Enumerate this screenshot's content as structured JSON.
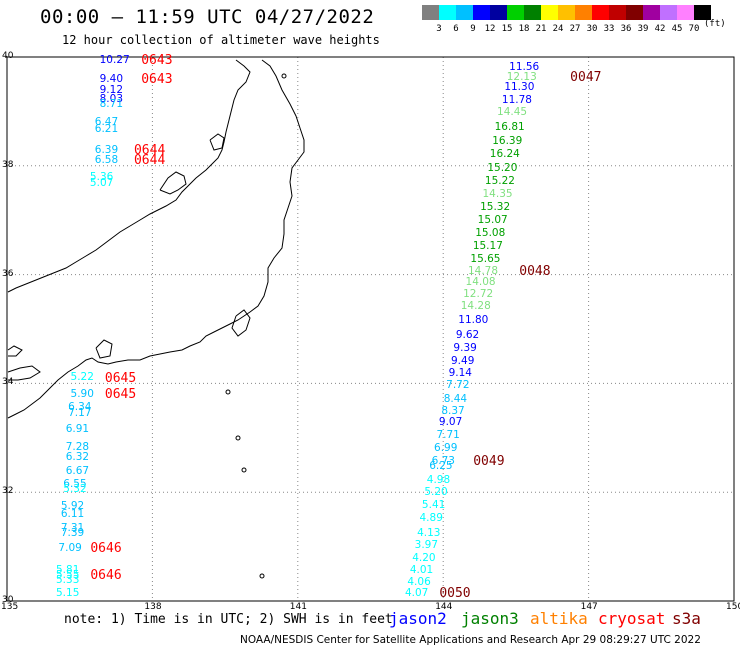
{
  "title": "00:00 — 11:59 UTC 04/27/2022",
  "subtitle": "12 hour collection of altimeter wave heights",
  "colorbar": {
    "colors": [
      "#808080",
      "#00ffff",
      "#00c0ff",
      "#0000ff",
      "#0000a0",
      "#00d000",
      "#008000",
      "#ffff00",
      "#ffc000",
      "#ff8000",
      "#ff0000",
      "#c00000",
      "#800000",
      "#a000a0",
      "#c070ff",
      "#ff80ff",
      "#000000"
    ],
    "labels": [
      "3",
      "6",
      "9",
      "12",
      "15",
      "18",
      "21",
      "24",
      "27",
      "30",
      "33",
      "36",
      "39",
      "42",
      "45",
      "70"
    ],
    "unit": "(ft)"
  },
  "axes": {
    "lon_range": [
      135,
      150
    ],
    "lat_range": [
      30,
      40
    ],
    "lon_ticks": [
      "135",
      "138",
      "141",
      "144",
      "147",
      "150"
    ],
    "lat_ticks": [
      "40",
      "38",
      "36",
      "34",
      "32",
      "30"
    ]
  },
  "note": "note:  1) Time is in UTC;  2) SWH is in feet",
  "satellites": [
    {
      "name": "jason2",
      "color": "#0000ff"
    },
    {
      "name": "jason3",
      "color": "#008000"
    },
    {
      "name": "altika",
      "color": "#ff8000"
    },
    {
      "name": "cryosat",
      "color": "#ff0000"
    },
    {
      "name": "s3a",
      "color": "#800000"
    }
  ],
  "credit": "NOAA/NESDIS Center for Satellite Applications and Research   Apr 29 08:29:27 UTC 2022",
  "tracks": [
    {
      "id": "west",
      "readings": [
        {
          "v": "10.27",
          "c": "#0000ff",
          "lat": 39.93,
          "lon": 137.2
        },
        {
          "v": "9.40",
          "c": "#0000ff",
          "lat": 39.58,
          "lon": 137.2
        },
        {
          "v": "9.12",
          "c": "#0000ff",
          "lat": 39.38,
          "lon": 137.2
        },
        {
          "v": "8.03",
          "c": "#0000ff",
          "lat": 39.21,
          "lon": 137.2
        },
        {
          "v": "8.71",
          "c": "#00c0ff",
          "lat": 39.12,
          "lon": 137.2
        },
        {
          "v": "6.47",
          "c": "#00c0ff",
          "lat": 38.78,
          "lon": 137.1
        },
        {
          "v": "6.21",
          "c": "#00c0ff",
          "lat": 38.66,
          "lon": 137.1
        },
        {
          "v": "6.39",
          "c": "#00c0ff",
          "lat": 38.27,
          "lon": 137.1
        },
        {
          "v": "6.58",
          "c": "#00c0ff",
          "lat": 38.09,
          "lon": 137.1
        },
        {
          "v": "5.36",
          "c": "#00ffff",
          "lat": 37.77,
          "lon": 137.0
        },
        {
          "v": "5.07",
          "c": "#00ffff",
          "lat": 37.66,
          "lon": 137.0
        },
        {
          "v": "5.22",
          "c": "#00ffff",
          "lat": 34.1,
          "lon": 136.6
        },
        {
          "v": "5.90",
          "c": "#00c0ff",
          "lat": 33.79,
          "lon": 136.6
        },
        {
          "v": "6.34",
          "c": "#00c0ff",
          "lat": 33.54,
          "lon": 136.55
        },
        {
          "v": "7.17",
          "c": "#00c0ff",
          "lat": 33.43,
          "lon": 136.55
        },
        {
          "v": "6.91",
          "c": "#00c0ff",
          "lat": 33.14,
          "lon": 136.5
        },
        {
          "v": "7.28",
          "c": "#00c0ff",
          "lat": 32.81,
          "lon": 136.5
        },
        {
          "v": "6.32",
          "c": "#00c0ff",
          "lat": 32.63,
          "lon": 136.5
        },
        {
          "v": "6.67",
          "c": "#00c0ff",
          "lat": 32.38,
          "lon": 136.5
        },
        {
          "v": "6.55",
          "c": "#00c0ff",
          "lat": 32.13,
          "lon": 136.45
        },
        {
          "v": "5.32",
          "c": "#00ffff",
          "lat": 32.04,
          "lon": 136.45
        },
        {
          "v": "5.92",
          "c": "#00c0ff",
          "lat": 31.72,
          "lon": 136.4
        },
        {
          "v": "6.11",
          "c": "#00c0ff",
          "lat": 31.58,
          "lon": 136.4
        },
        {
          "v": "7.31",
          "c": "#00c0ff",
          "lat": 31.32,
          "lon": 136.4
        },
        {
          "v": "7.39",
          "c": "#00c0ff",
          "lat": 31.23,
          "lon": 136.4
        },
        {
          "v": "7.09",
          "c": "#00c0ff",
          "lat": 30.96,
          "lon": 136.35
        },
        {
          "v": "5.81",
          "c": "#00ffff",
          "lat": 30.56,
          "lon": 136.3
        },
        {
          "v": "5.55",
          "c": "#00ffff",
          "lat": 30.46,
          "lon": 136.3
        },
        {
          "v": "5.33",
          "c": "#00ffff",
          "lat": 30.37,
          "lon": 136.3
        },
        {
          "v": "5.15",
          "c": "#00ffff",
          "lat": 30.12,
          "lon": 136.3
        }
      ],
      "times": [
        {
          "t": "0643",
          "c": "#ff0000",
          "lat": 39.93,
          "lon": 138.1
        },
        {
          "t": "0643",
          "c": "#ff0000",
          "lat": 39.58,
          "lon": 138.1
        },
        {
          "t": "0644",
          "c": "#ff0000",
          "lat": 38.27,
          "lon": 137.95
        },
        {
          "t": "0644",
          "c": "#ff0000",
          "lat": 38.09,
          "lon": 137.95
        },
        {
          "t": "0645",
          "c": "#ff0000",
          "lat": 34.08,
          "lon": 137.35
        },
        {
          "t": "0645",
          "c": "#ff0000",
          "lat": 33.79,
          "lon": 137.35
        },
        {
          "t": "0646",
          "c": "#ff0000",
          "lat": 30.96,
          "lon": 137.05
        },
        {
          "t": "0646",
          "c": "#ff0000",
          "lat": 30.46,
          "lon": 137.05
        }
      ]
    },
    {
      "id": "east",
      "readings": [
        {
          "v": "11.56",
          "c": "#0000ff",
          "lat": 39.8,
          "lon": 145.65
        },
        {
          "v": "12.13",
          "c": "#80e080",
          "lat": 39.62,
          "lon": 145.6
        },
        {
          "v": "11.30",
          "c": "#0000ff",
          "lat": 39.43,
          "lon": 145.55
        },
        {
          "v": "11.78",
          "c": "#0000ff",
          "lat": 39.2,
          "lon": 145.5
        },
        {
          "v": "14.45",
          "c": "#80e080",
          "lat": 38.97,
          "lon": 145.4
        },
        {
          "v": "16.81",
          "c": "#00a000",
          "lat": 38.7,
          "lon": 145.35
        },
        {
          "v": "16.39",
          "c": "#00a000",
          "lat": 38.44,
          "lon": 145.3
        },
        {
          "v": "16.24",
          "c": "#00a000",
          "lat": 38.2,
          "lon": 145.25
        },
        {
          "v": "15.20",
          "c": "#00a000",
          "lat": 37.95,
          "lon": 145.2
        },
        {
          "v": "15.22",
          "c": "#00a000",
          "lat": 37.7,
          "lon": 145.15
        },
        {
          "v": "14.35",
          "c": "#80e080",
          "lat": 37.47,
          "lon": 145.1
        },
        {
          "v": "15.32",
          "c": "#00a000",
          "lat": 37.22,
          "lon": 145.05
        },
        {
          "v": "15.07",
          "c": "#00a000",
          "lat": 36.98,
          "lon": 145.0
        },
        {
          "v": "15.08",
          "c": "#00a000",
          "lat": 36.75,
          "lon": 144.95
        },
        {
          "v": "15.17",
          "c": "#00a000",
          "lat": 36.51,
          "lon": 144.9
        },
        {
          "v": "15.65",
          "c": "#00a000",
          "lat": 36.27,
          "lon": 144.85
        },
        {
          "v": "14.78",
          "c": "#80e080",
          "lat": 36.05,
          "lon": 144.8
        },
        {
          "v": "14.08",
          "c": "#80e080",
          "lat": 35.84,
          "lon": 144.75
        },
        {
          "v": "12.72",
          "c": "#80e080",
          "lat": 35.62,
          "lon": 144.7
        },
        {
          "v": "14.28",
          "c": "#80e080",
          "lat": 35.41,
          "lon": 144.65
        },
        {
          "v": "11.80",
          "c": "#0000ff",
          "lat": 35.14,
          "lon": 144.6
        },
        {
          "v": "9.62",
          "c": "#0000ff",
          "lat": 34.88,
          "lon": 144.55
        },
        {
          "v": "9.39",
          "c": "#0000ff",
          "lat": 34.64,
          "lon": 144.5
        },
        {
          "v": "9.49",
          "c": "#0000ff",
          "lat": 34.4,
          "lon": 144.45
        },
        {
          "v": "9.14",
          "c": "#0000ff",
          "lat": 34.18,
          "lon": 144.4
        },
        {
          "v": "7.72",
          "c": "#00c0ff",
          "lat": 33.96,
          "lon": 144.35
        },
        {
          "v": "8.44",
          "c": "#00c0ff",
          "lat": 33.7,
          "lon": 144.3
        },
        {
          "v": "8.37",
          "c": "#00c0ff",
          "lat": 33.48,
          "lon": 144.25
        },
        {
          "v": "9.07",
          "c": "#0000ff",
          "lat": 33.27,
          "lon": 144.2
        },
        {
          "v": "7.71",
          "c": "#00c0ff",
          "lat": 33.03,
          "lon": 144.15
        },
        {
          "v": "6.99",
          "c": "#00c0ff",
          "lat": 32.79,
          "lon": 144.1
        },
        {
          "v": "6.73",
          "c": "#00c0ff",
          "lat": 32.56,
          "lon": 144.05
        },
        {
          "v": "6.25",
          "c": "#00c0ff",
          "lat": 32.46,
          "lon": 144.0
        },
        {
          "v": "4.98",
          "c": "#00ffff",
          "lat": 32.2,
          "lon": 143.95
        },
        {
          "v": "5.20",
          "c": "#00ffff",
          "lat": 31.98,
          "lon": 143.9
        },
        {
          "v": "5.41",
          "c": "#00ffff",
          "lat": 31.74,
          "lon": 143.85
        },
        {
          "v": "4.89",
          "c": "#00ffff",
          "lat": 31.5,
          "lon": 143.8
        },
        {
          "v": "4.13",
          "c": "#00ffff",
          "lat": 31.24,
          "lon": 143.75
        },
        {
          "v": "3.97",
          "c": "#00ffff",
          "lat": 31.02,
          "lon": 143.7
        },
        {
          "v": "4.20",
          "c": "#00ffff",
          "lat": 30.78,
          "lon": 143.65
        },
        {
          "v": "4.01",
          "c": "#00ffff",
          "lat": 30.56,
          "lon": 143.6
        },
        {
          "v": "4.06",
          "c": "#00ffff",
          "lat": 30.33,
          "lon": 143.55
        },
        {
          "v": "4.07",
          "c": "#00ffff",
          "lat": 30.12,
          "lon": 143.5
        }
      ],
      "times": [
        {
          "t": "0047",
          "c": "#800000",
          "lat": 39.62,
          "lon": 146.95
        },
        {
          "t": "0048",
          "c": "#800000",
          "lat": 36.05,
          "lon": 145.9
        },
        {
          "t": "0049",
          "c": "#800000",
          "lat": 32.56,
          "lon": 144.95
        },
        {
          "t": "0050",
          "c": "#800000",
          "lat": 30.12,
          "lon": 144.25
        }
      ]
    }
  ]
}
